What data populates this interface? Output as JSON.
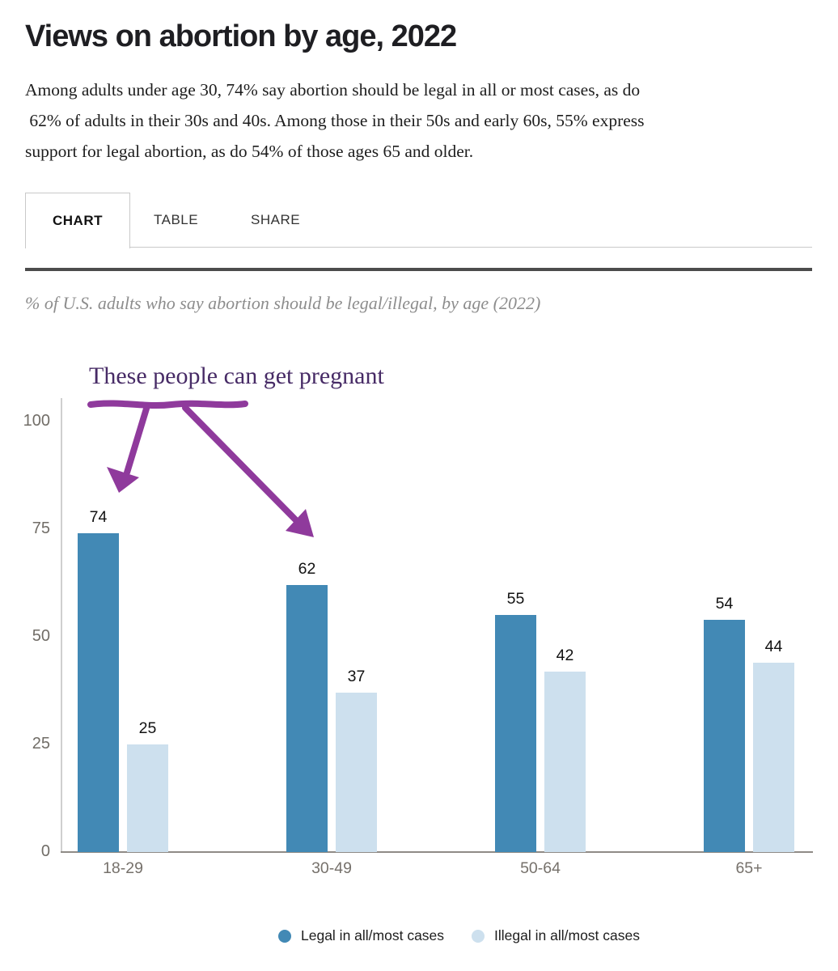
{
  "header": {
    "title": "Views on abortion by age, 2022",
    "description_lines": [
      "Among adults under age 30, 74% say abortion should be legal in all or most cases, as do",
      " 62% of adults in their 30s and 40s. Among those in their 50s and early 60s, 55% express",
      "support for legal abortion, as do 54% of those ages 65 and older."
    ]
  },
  "tabs": {
    "items": [
      {
        "label": "CHART",
        "active": true
      },
      {
        "label": "TABLE",
        "active": false
      },
      {
        "label": "SHARE",
        "active": false
      }
    ]
  },
  "subtitle": "% of U.S. adults who say abortion should be legal/illegal, by age (2022)",
  "annotation": {
    "text": "These people can get pregnant",
    "text_color": "#472b66",
    "arrow_color": "#8f3a9c",
    "points_to": [
      "18-29",
      "30-49"
    ]
  },
  "chart_data": {
    "type": "bar",
    "title": "Views on abortion by age, 2022",
    "subtitle": "% of U.S. adults who say abortion should be legal/illegal, by age (2022)",
    "categories": [
      "18-29",
      "30-49",
      "50-64",
      "65+"
    ],
    "series": [
      {
        "name": "Legal in all/most cases",
        "color": "#4289b5",
        "values": [
          74,
          62,
          55,
          54
        ]
      },
      {
        "name": "Illegal in all/most cases",
        "color": "#cde0ee",
        "values": [
          25,
          37,
          42,
          44
        ]
      }
    ],
    "yticks": [
      0,
      25,
      50,
      75,
      100
    ],
    "ylim": [
      0,
      105
    ],
    "xlabel": "",
    "ylabel": "",
    "grid": false,
    "value_labels": true,
    "legend_position": "bottom"
  },
  "legend": {
    "items": [
      {
        "label": "Legal in all/most cases",
        "color": "#4289b5"
      },
      {
        "label": "Illegal in all/most cases",
        "color": "#cde0ee"
      }
    ]
  }
}
